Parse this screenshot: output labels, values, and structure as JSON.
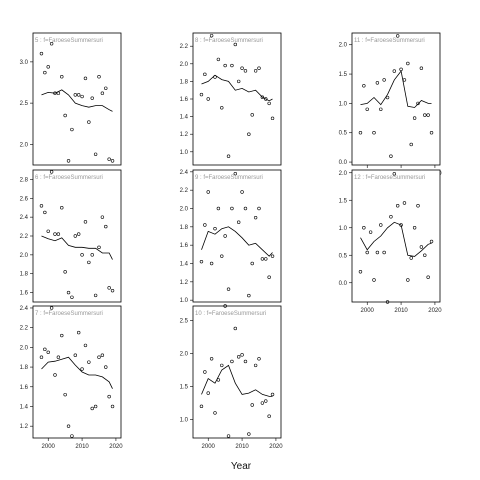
{
  "chart_data": {
    "type": "scatter",
    "xlabel": "Year",
    "panels": [
      {
        "strip": "5 : f=FaroeseSummersuri",
        "ylim": [
          1.75,
          3.35
        ],
        "yticks": [
          "2.0",
          "2.5",
          "3.0"
        ],
        "ytick_values": [
          2.0,
          2.5,
          3.0
        ],
        "x": [
          1998,
          1999,
          2000,
          2001,
          2002,
          2003,
          2004,
          2005,
          2006,
          2007,
          2008,
          2009,
          2010,
          2011,
          2012,
          2013,
          2014,
          2015,
          2016,
          2017,
          2018,
          2019
        ],
        "y": [
          3.1,
          2.87,
          2.94,
          3.22,
          2.62,
          2.62,
          2.82,
          2.35,
          1.8,
          2.18,
          2.6,
          2.6,
          2.58,
          2.8,
          2.27,
          2.56,
          1.88,
          2.82,
          2.62,
          2.68,
          1.82,
          1.8
        ],
        "trend_x": [
          1998,
          2000,
          2002,
          2004,
          2006,
          2008,
          2010,
          2012,
          2014,
          2016,
          2018,
          2019
        ],
        "trend_y": [
          2.6,
          2.63,
          2.62,
          2.66,
          2.6,
          2.5,
          2.47,
          2.45,
          2.47,
          2.47,
          2.42,
          2.4
        ]
      },
      {
        "strip": "8 : f=FaroeseSummersuri",
        "ylim": [
          0.85,
          2.35
        ],
        "yticks": [
          "1.0",
          "1.2",
          "1.4",
          "1.6",
          "1.8",
          "2.0",
          "2.2"
        ],
        "ytick_values": [
          1.0,
          1.2,
          1.4,
          1.6,
          1.8,
          2.0,
          2.2
        ],
        "x": [
          1998,
          1999,
          2000,
          2001,
          2002,
          2003,
          2004,
          2005,
          2006,
          2007,
          2008,
          2009,
          2010,
          2011,
          2012,
          2013,
          2014,
          2015,
          2016,
          2017,
          2018,
          2019
        ],
        "y": [
          1.65,
          1.88,
          1.6,
          2.32,
          1.85,
          2.05,
          1.5,
          1.98,
          0.95,
          1.98,
          2.22,
          1.8,
          1.95,
          1.92,
          1.2,
          1.42,
          1.92,
          1.95,
          1.62,
          1.6,
          1.55,
          1.38
        ],
        "trend_x": [
          1998,
          2000,
          2002,
          2004,
          2006,
          2008,
          2010,
          2012,
          2014,
          2016,
          2018,
          2019
        ],
        "trend_y": [
          1.77,
          1.8,
          1.87,
          1.82,
          1.8,
          1.7,
          1.72,
          1.68,
          1.7,
          1.62,
          1.58,
          1.6
        ]
      },
      {
        "strip": "11 : f=FaroeseSummersuri",
        "ylim": [
          -0.05,
          2.2
        ],
        "yticks": [
          "0.0",
          "0.5",
          "1.0",
          "1.5",
          "2.0"
        ],
        "ytick_values": [
          0.0,
          0.5,
          1.0,
          1.5,
          2.0
        ],
        "x": [
          1998,
          1999,
          2000,
          2002,
          2003,
          2004,
          2005,
          2006,
          2007,
          2008,
          2009,
          2010,
          2011,
          2012,
          2013,
          2014,
          2015,
          2016,
          2017,
          2018,
          2019
        ],
        "y": [
          0.5,
          1.3,
          0.9,
          0.5,
          1.35,
          0.9,
          1.4,
          1.1,
          0.1,
          1.55,
          2.15,
          1.58,
          1.4,
          1.68,
          0.3,
          0.75,
          1.0,
          1.6,
          0.8,
          0.8,
          0.5
        ],
        "trend_x": [
          1998,
          2000,
          2002,
          2004,
          2006,
          2008,
          2010,
          2012,
          2014,
          2016,
          2018,
          2019
        ],
        "trend_y": [
          0.98,
          1.0,
          1.1,
          0.98,
          1.15,
          1.4,
          1.55,
          0.95,
          0.93,
          1.05,
          1.0,
          1.0
        ]
      },
      {
        "strip": "6 : f=FaroeseSummersuri",
        "ylim": [
          1.5,
          2.9
        ],
        "yticks": [
          "1.6",
          "1.8",
          "2.0",
          "2.2",
          "2.4",
          "2.6",
          "2.8"
        ],
        "ytick_values": [
          1.6,
          1.8,
          2.0,
          2.2,
          2.4,
          2.6,
          2.8
        ],
        "x": [
          1998,
          1999,
          2000,
          2001,
          2002,
          2003,
          2004,
          2005,
          2006,
          2007,
          2008,
          2009,
          2010,
          2011,
          2012,
          2013,
          2014,
          2015,
          2016,
          2017,
          2018,
          2019
        ],
        "y": [
          2.52,
          2.45,
          2.25,
          2.88,
          2.22,
          2.22,
          2.5,
          1.82,
          1.6,
          1.55,
          2.2,
          2.22,
          2.0,
          2.35,
          1.92,
          2.0,
          1.57,
          2.08,
          2.4,
          2.3,
          1.65,
          1.62
        ],
        "trend_x": [
          1998,
          2000,
          2002,
          2004,
          2006,
          2008,
          2010,
          2012,
          2014,
          2016,
          2018,
          2019
        ],
        "trend_y": [
          2.2,
          2.17,
          2.15,
          2.18,
          2.1,
          2.08,
          2.08,
          2.07,
          2.07,
          2.02,
          2.02,
          1.95
        ]
      },
      {
        "strip": "9 : f=FaroeseSummersuri",
        "ylim": [
          0.98,
          2.42
        ],
        "yticks": [
          "1.0",
          "1.2",
          "1.4",
          "1.6",
          "1.8",
          "2.0",
          "2.2",
          "2.4"
        ],
        "ytick_values": [
          1.0,
          1.2,
          1.4,
          1.6,
          1.8,
          2.0,
          2.2,
          2.4
        ],
        "x": [
          1998,
          1999,
          2000,
          2001,
          2002,
          2003,
          2004,
          2005,
          2006,
          2007,
          2008,
          2009,
          2010,
          2011,
          2012,
          2013,
          2014,
          2015,
          2016,
          2017,
          2018,
          2019
        ],
        "y": [
          1.42,
          1.82,
          2.18,
          1.4,
          1.78,
          2.0,
          1.48,
          1.7,
          1.12,
          2.0,
          2.38,
          1.85,
          2.18,
          2.0,
          1.05,
          1.4,
          1.9,
          2.0,
          1.45,
          1.45,
          1.25,
          1.48
        ],
        "trend_x": [
          1998,
          2000,
          2002,
          2004,
          2006,
          2008,
          2010,
          2012,
          2014,
          2016,
          2018,
          2019
        ],
        "trend_y": [
          1.55,
          1.75,
          1.72,
          1.78,
          1.8,
          1.75,
          1.68,
          1.6,
          1.62,
          1.55,
          1.48,
          1.52
        ]
      },
      {
        "strip": "12 : f=FaroeseSummersuri",
        "ylim": [
          -0.35,
          2.05
        ],
        "yticks": [
          "0.0",
          "0.5",
          "1.0",
          "1.5",
          "2.0"
        ],
        "ytick_values": [
          0.0,
          0.5,
          1.0,
          1.5,
          2.0
        ],
        "x": [
          1998,
          1999,
          2000,
          2001,
          2002,
          2003,
          2004,
          2005,
          2006,
          2007,
          2008,
          2009,
          2010,
          2011,
          2012,
          2013,
          2014,
          2015,
          2016,
          2017,
          2018,
          2019
        ],
        "y": [
          0.2,
          1.0,
          0.55,
          0.92,
          0.05,
          0.55,
          1.05,
          0.55,
          -0.35,
          1.2,
          1.98,
          1.4,
          1.05,
          1.45,
          0.05,
          0.45,
          1.0,
          1.4,
          0.65,
          0.5,
          0.1,
          0.75
        ],
        "trend_x": [
          1998,
          2000,
          2002,
          2004,
          2006,
          2008,
          2010,
          2012,
          2014,
          2016,
          2018,
          2019
        ],
        "trend_y": [
          0.82,
          0.6,
          0.75,
          0.85,
          1.0,
          1.1,
          1.05,
          0.5,
          0.48,
          0.58,
          0.7,
          0.72
        ]
      },
      {
        "strip": "7 : f=FaroeseSummersuri",
        "ylim": [
          1.08,
          2.42
        ],
        "yticks": [
          "1.2",
          "1.4",
          "1.6",
          "1.8",
          "2.0",
          "2.2",
          "2.4"
        ],
        "ytick_values": [
          1.2,
          1.4,
          1.6,
          1.8,
          2.0,
          2.2,
          2.4
        ],
        "x": [
          1998,
          1999,
          2000,
          2001,
          2002,
          2003,
          2004,
          2005,
          2006,
          2007,
          2008,
          2009,
          2010,
          2011,
          2012,
          2013,
          2014,
          2015,
          2016,
          2017,
          2018,
          2019
        ],
        "y": [
          1.9,
          1.98,
          1.95,
          2.4,
          1.72,
          1.9,
          2.12,
          1.52,
          1.2,
          1.1,
          1.92,
          2.15,
          1.78,
          2.02,
          1.85,
          1.38,
          1.4,
          1.9,
          1.92,
          1.8,
          1.5,
          1.4
        ],
        "trend_x": [
          1998,
          2000,
          2002,
          2004,
          2006,
          2008,
          2010,
          2012,
          2014,
          2016,
          2018,
          2019
        ],
        "trend_y": [
          1.78,
          1.85,
          1.86,
          1.88,
          1.9,
          1.82,
          1.75,
          1.72,
          1.72,
          1.7,
          1.65,
          1.58
        ]
      },
      {
        "strip": "10 : f=FaroeseSummersuri",
        "ylim": [
          0.72,
          2.72
        ],
        "yticks": [
          "1.0",
          "1.5",
          "2.0",
          "2.5"
        ],
        "ytick_values": [
          1.0,
          1.5,
          2.0,
          2.5
        ],
        "x": [
          1998,
          1999,
          2000,
          2001,
          2002,
          2003,
          2004,
          2005,
          2006,
          2007,
          2008,
          2009,
          2010,
          2011,
          2012,
          2013,
          2014,
          2015,
          2016,
          2017,
          2018,
          2019
        ],
        "y": [
          1.2,
          1.72,
          1.4,
          1.92,
          1.1,
          1.6,
          1.82,
          2.72,
          0.75,
          1.88,
          2.38,
          1.95,
          1.98,
          1.88,
          0.78,
          1.22,
          1.82,
          1.92,
          1.25,
          1.28,
          1.05,
          1.38
        ],
        "trend_x": [
          1998,
          2000,
          2002,
          2004,
          2006,
          2008,
          2010,
          2012,
          2014,
          2016,
          2018,
          2019
        ],
        "trend_y": [
          1.38,
          1.62,
          1.55,
          1.75,
          1.82,
          1.55,
          1.38,
          1.4,
          1.45,
          1.38,
          1.35,
          1.35
        ]
      }
    ],
    "xlim": [
      1995.5,
      2021.5
    ],
    "xticks": [
      "2000",
      "2010",
      "2020"
    ],
    "xtick_values": [
      2000,
      2010,
      2020
    ],
    "show_xticks_on": [
      2,
      5,
      6,
      7
    ],
    "grid": false
  }
}
